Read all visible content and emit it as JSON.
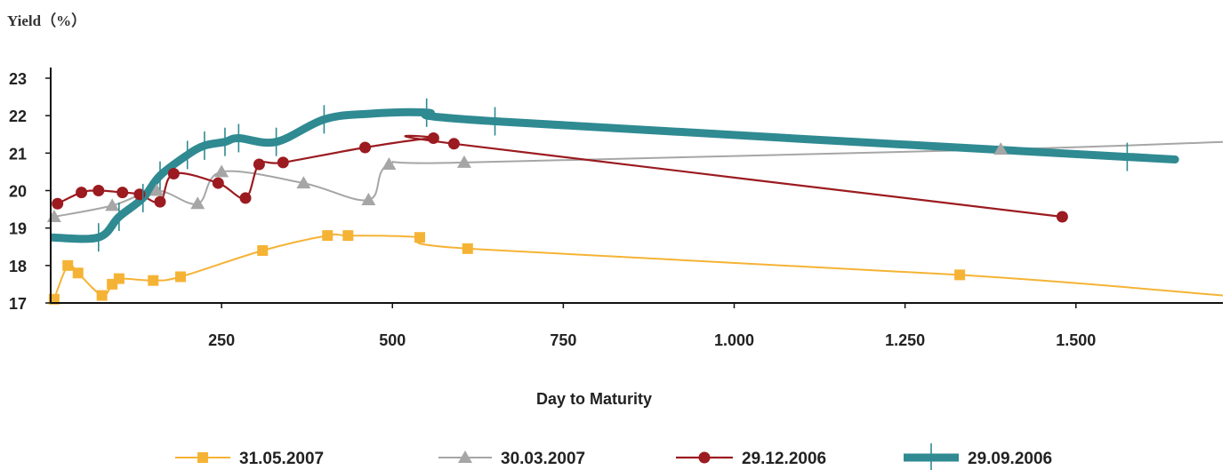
{
  "chart_data": {
    "type": "line",
    "title": "",
    "ylabel": "Yield（%）",
    "xlabel": "Day to Maturity",
    "xlim": [
      0,
      1715
    ],
    "ylim": [
      17,
      23
    ],
    "x_ticks": [
      250,
      500,
      750,
      1000,
      1250,
      1500
    ],
    "x_tick_labels": [
      "250",
      "500",
      "750",
      "1.000",
      "1.250",
      "1.500"
    ],
    "y_ticks": [
      17,
      18,
      19,
      20,
      21,
      22,
      23
    ],
    "y_tick_labels": [
      "17",
      "18",
      "19",
      "20",
      "21",
      "22",
      "23"
    ],
    "grid": false,
    "legend_position": "bottom",
    "series": [
      {
        "name": "31.05.2007",
        "color": "#f5b335",
        "marker": "square",
        "points": [
          {
            "x": 5,
            "y": 17.1,
            "m": true
          },
          {
            "x": 25,
            "y": 18.0,
            "m": true
          },
          {
            "x": 40,
            "y": 17.8,
            "m": true
          },
          {
            "x": 75,
            "y": 17.2,
            "m": true
          },
          {
            "x": 90,
            "y": 17.5,
            "m": true
          },
          {
            "x": 100,
            "y": 17.65,
            "m": true
          },
          {
            "x": 150,
            "y": 17.6,
            "m": true
          },
          {
            "x": 190,
            "y": 17.7,
            "m": true
          },
          {
            "x": 310,
            "y": 18.4,
            "m": true
          },
          {
            "x": 405,
            "y": 18.8,
            "m": true
          },
          {
            "x": 435,
            "y": 18.8,
            "m": true
          },
          {
            "x": 540,
            "y": 18.75,
            "m": true
          },
          {
            "x": 610,
            "y": 18.45,
            "m": true
          },
          {
            "x": 1330,
            "y": 17.75,
            "m": true
          },
          {
            "x": 1715,
            "y": 17.2,
            "m": false
          }
        ]
      },
      {
        "name": "30.03.2007",
        "color": "#a6a6a6",
        "marker": "triangle",
        "points": [
          {
            "x": 5,
            "y": 19.3,
            "m": true
          },
          {
            "x": 90,
            "y": 19.6,
            "m": true
          },
          {
            "x": 155,
            "y": 20.0,
            "m": true
          },
          {
            "x": 215,
            "y": 19.65,
            "m": true
          },
          {
            "x": 250,
            "y": 20.5,
            "m": true
          },
          {
            "x": 370,
            "y": 20.2,
            "m": true
          },
          {
            "x": 465,
            "y": 19.75,
            "m": true
          },
          {
            "x": 495,
            "y": 20.7,
            "m": true
          },
          {
            "x": 605,
            "y": 20.75,
            "m": true
          },
          {
            "x": 1390,
            "y": 21.1,
            "m": true
          },
          {
            "x": 1715,
            "y": 21.3,
            "m": false
          }
        ]
      },
      {
        "name": "29.12.2006",
        "color": "#9b1b20",
        "marker": "circle",
        "points": [
          {
            "x": 10,
            "y": 19.65,
            "m": true
          },
          {
            "x": 45,
            "y": 19.95,
            "m": true
          },
          {
            "x": 70,
            "y": 20.0,
            "m": true
          },
          {
            "x": 105,
            "y": 19.95,
            "m": true
          },
          {
            "x": 130,
            "y": 19.9,
            "m": true
          },
          {
            "x": 160,
            "y": 19.7,
            "m": true
          },
          {
            "x": 180,
            "y": 20.45,
            "m": true
          },
          {
            "x": 245,
            "y": 20.2,
            "m": true
          },
          {
            "x": 285,
            "y": 19.8,
            "m": true
          },
          {
            "x": 305,
            "y": 20.7,
            "m": true
          },
          {
            "x": 340,
            "y": 20.75,
            "m": true
          },
          {
            "x": 460,
            "y": 21.15,
            "m": true
          },
          {
            "x": 560,
            "y": 21.4,
            "m": true
          },
          {
            "x": 590,
            "y": 21.25,
            "m": true
          },
          {
            "x": 1480,
            "y": 19.3,
            "m": true
          }
        ]
      },
      {
        "name": "29.09.2006",
        "color": "#2f8a92",
        "marker": "dash",
        "points": [
          {
            "x": 0,
            "y": 18.75,
            "m": false
          },
          {
            "x": 70,
            "y": 18.75,
            "m": true
          },
          {
            "x": 100,
            "y": 19.3,
            "m": true
          },
          {
            "x": 135,
            "y": 19.8,
            "m": true
          },
          {
            "x": 160,
            "y": 20.4,
            "m": true
          },
          {
            "x": 200,
            "y": 20.95,
            "m": true
          },
          {
            "x": 225,
            "y": 21.2,
            "m": true
          },
          {
            "x": 255,
            "y": 21.3,
            "m": true
          },
          {
            "x": 275,
            "y": 21.4,
            "m": true
          },
          {
            "x": 330,
            "y": 21.3,
            "m": true
          },
          {
            "x": 400,
            "y": 21.9,
            "m": true
          },
          {
            "x": 465,
            "y": 22.05,
            "m": false
          },
          {
            "x": 550,
            "y": 22.08,
            "m": true
          },
          {
            "x": 650,
            "y": 21.85,
            "m": true
          },
          {
            "x": 1575,
            "y": 20.9,
            "m": true
          },
          {
            "x": 1580,
            "y": 20.9,
            "m": false
          }
        ]
      }
    ]
  }
}
